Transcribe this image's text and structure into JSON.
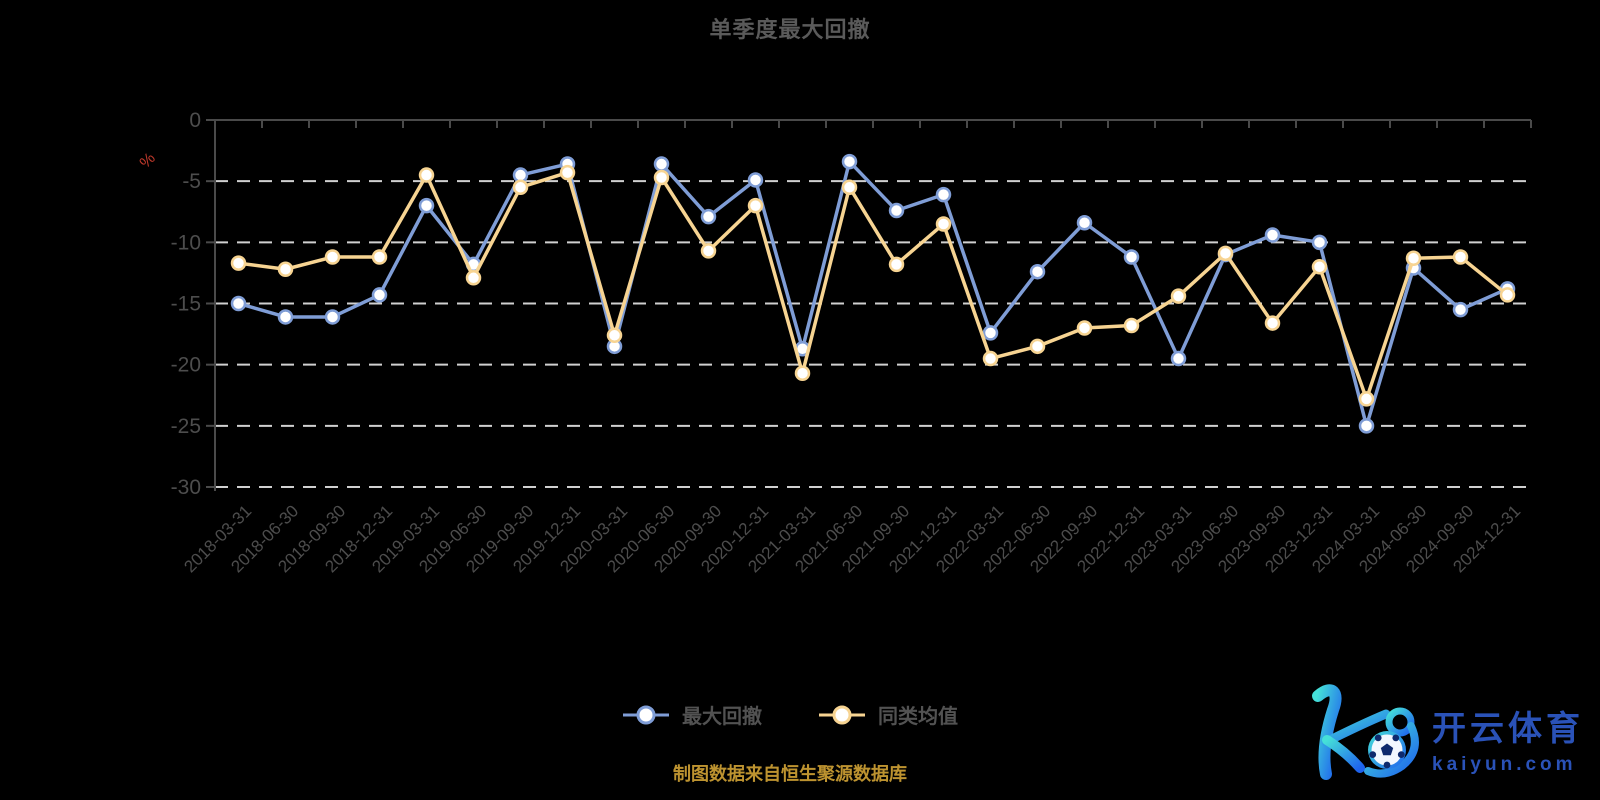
{
  "title": "单季度最大回撤",
  "caption": "制图数据来自恒生聚源数据库",
  "watermark": {
    "brand_cn": "开云体育",
    "domain": "kaiyun.com"
  },
  "colors": {
    "background": "#000000",
    "title": "#5a5a5a",
    "axis": "#4a4a4a",
    "axis_label": "#4d4d4d",
    "grid": "#d0d0d0",
    "unit": "#c0392b",
    "series_blue": "#7f9dd6",
    "series_yellow": "#f7d492",
    "caption_gold": "#bd9330",
    "watermark_blue": "#2a52b8"
  },
  "chart_data": {
    "type": "line",
    "title": "单季度最大回撤",
    "ylabel": "%",
    "xlabel": "",
    "ylim": [
      -30,
      0
    ],
    "y_ticks": [
      0,
      -5,
      -10,
      -15,
      -20,
      -25,
      -30
    ],
    "y_tick_labels": [
      "0",
      "-5",
      "-10",
      "-15",
      "-20",
      "-25",
      "-30"
    ],
    "grid": "horizontal-dashed",
    "legend_position": "bottom-center",
    "categories": [
      "2018-03-31",
      "2018-06-30",
      "2018-09-30",
      "2018-12-31",
      "2019-03-31",
      "2019-06-30",
      "2019-09-30",
      "2019-12-31",
      "2020-03-31",
      "2020-06-30",
      "2020-09-30",
      "2020-12-31",
      "2021-03-31",
      "2021-06-30",
      "2021-09-30",
      "2021-12-31",
      "2022-03-31",
      "2022-06-30",
      "2022-09-30",
      "2022-12-31",
      "2023-03-31",
      "2023-06-30",
      "2023-09-30",
      "2023-12-31",
      "2024-03-31",
      "2024-06-30",
      "2024-09-30",
      "2024-12-31"
    ],
    "series": [
      {
        "name": "最大回撤",
        "color": "#7f9dd6",
        "marker": "circle-white-fill",
        "values": [
          -15.0,
          -16.1,
          -16.1,
          -14.3,
          -7.0,
          -11.8,
          -4.5,
          -3.6,
          -18.5,
          -3.6,
          -7.9,
          -4.9,
          -18.7,
          -3.4,
          -7.4,
          -6.1,
          -17.4,
          -12.4,
          -8.4,
          -11.2,
          -19.5,
          -11.0,
          -9.4,
          -10.0,
          -25.0,
          -12.1,
          -15.5,
          -13.8
        ]
      },
      {
        "name": "同类均值",
        "color": "#f7d492",
        "marker": "circle-white-fill",
        "values": [
          -11.7,
          -12.2,
          -11.2,
          -11.2,
          -4.5,
          -12.9,
          -5.5,
          -4.3,
          -17.6,
          -4.7,
          -10.7,
          -7.0,
          -20.7,
          -5.5,
          -11.8,
          -8.5,
          -19.5,
          -18.5,
          -17.0,
          -16.8,
          -14.4,
          -10.9,
          -16.6,
          -12.0,
          -22.8,
          -11.3,
          -11.2,
          -14.3
        ]
      }
    ]
  }
}
